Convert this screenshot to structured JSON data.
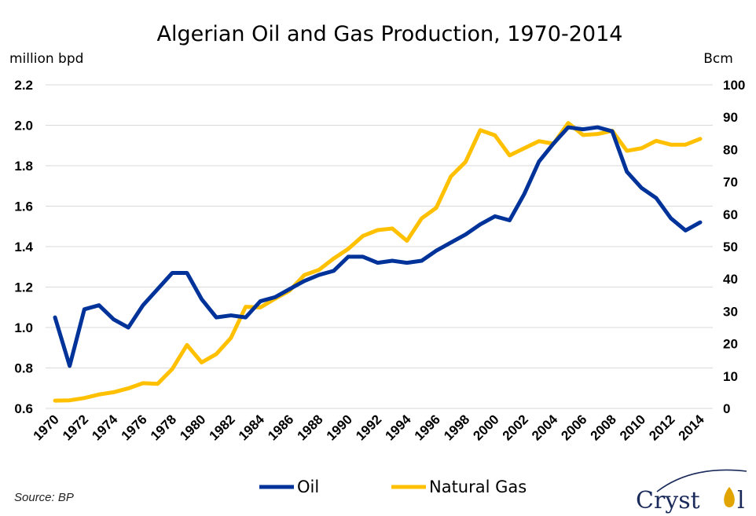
{
  "chart_data": {
    "type": "line",
    "title": "Algerian Oil and Gas Production, 1970-2014",
    "y_left_label": "million bpd",
    "y_right_label": "Bcm",
    "y_left_range": [
      0.6,
      2.2
    ],
    "y_left_ticks": [
      "0.6",
      "0.8",
      "1.0",
      "1.2",
      "1.4",
      "1.6",
      "1.8",
      "2.0",
      "2.2"
    ],
    "y_right_range": [
      0,
      100
    ],
    "y_right_ticks": [
      "0",
      "10",
      "20",
      "30",
      "40",
      "50",
      "60",
      "70",
      "80",
      "90",
      "100"
    ],
    "x_tick_labels": [
      "1970",
      "1972",
      "1974",
      "1976",
      "1978",
      "1980",
      "1982",
      "1984",
      "1986",
      "1988",
      "1990",
      "1992",
      "1994",
      "1996",
      "1998",
      "2000",
      "2002",
      "2004",
      "2006",
      "2008",
      "2010",
      "2012",
      "2014"
    ],
    "grid": true,
    "legend_position": "bottom",
    "x": [
      1970,
      1971,
      1972,
      1973,
      1974,
      1975,
      1976,
      1977,
      1978,
      1979,
      1980,
      1981,
      1982,
      1983,
      1984,
      1985,
      1986,
      1987,
      1988,
      1989,
      1990,
      1991,
      1992,
      1993,
      1994,
      1995,
      1996,
      1997,
      1998,
      1999,
      2000,
      2001,
      2002,
      2003,
      2004,
      2005,
      2006,
      2007,
      2008,
      2009,
      2010,
      2011,
      2012,
      2013,
      2014
    ],
    "series": [
      {
        "name": "Oil",
        "axis": "left",
        "color": "#003399",
        "values": [
          1.05,
          0.81,
          1.09,
          1.11,
          1.04,
          1.0,
          1.11,
          1.19,
          1.27,
          1.27,
          1.14,
          1.05,
          1.06,
          1.05,
          1.13,
          1.15,
          1.19,
          1.23,
          1.26,
          1.28,
          1.35,
          1.35,
          1.32,
          1.33,
          1.32,
          1.33,
          1.38,
          1.42,
          1.46,
          1.51,
          1.55,
          1.53,
          1.66,
          1.82,
          1.91,
          1.99,
          1.98,
          1.99,
          1.97,
          1.77,
          1.69,
          1.64,
          1.54,
          1.48,
          1.52
        ]
      },
      {
        "name": "Natural Gas",
        "axis": "right",
        "color": "#ffc000",
        "values": [
          2.4,
          2.5,
          3.2,
          4.3,
          5.0,
          6.2,
          7.8,
          7.6,
          12.2,
          19.6,
          14.2,
          16.8,
          21.8,
          31.4,
          31.2,
          33.9,
          36.4,
          41.2,
          42.8,
          46.3,
          49.3,
          53.3,
          55.1,
          55.6,
          51.8,
          58.7,
          62.0,
          71.7,
          76.2,
          86.0,
          84.4,
          78.2,
          80.4,
          82.6,
          81.8,
          88.2,
          84.5,
          84.8,
          85.8,
          79.6,
          80.4,
          82.7,
          81.5,
          81.5,
          83.3
        ]
      }
    ]
  },
  "source": "Source: BP",
  "brand": {
    "text_left": "Cryst",
    "text_right": "l"
  }
}
